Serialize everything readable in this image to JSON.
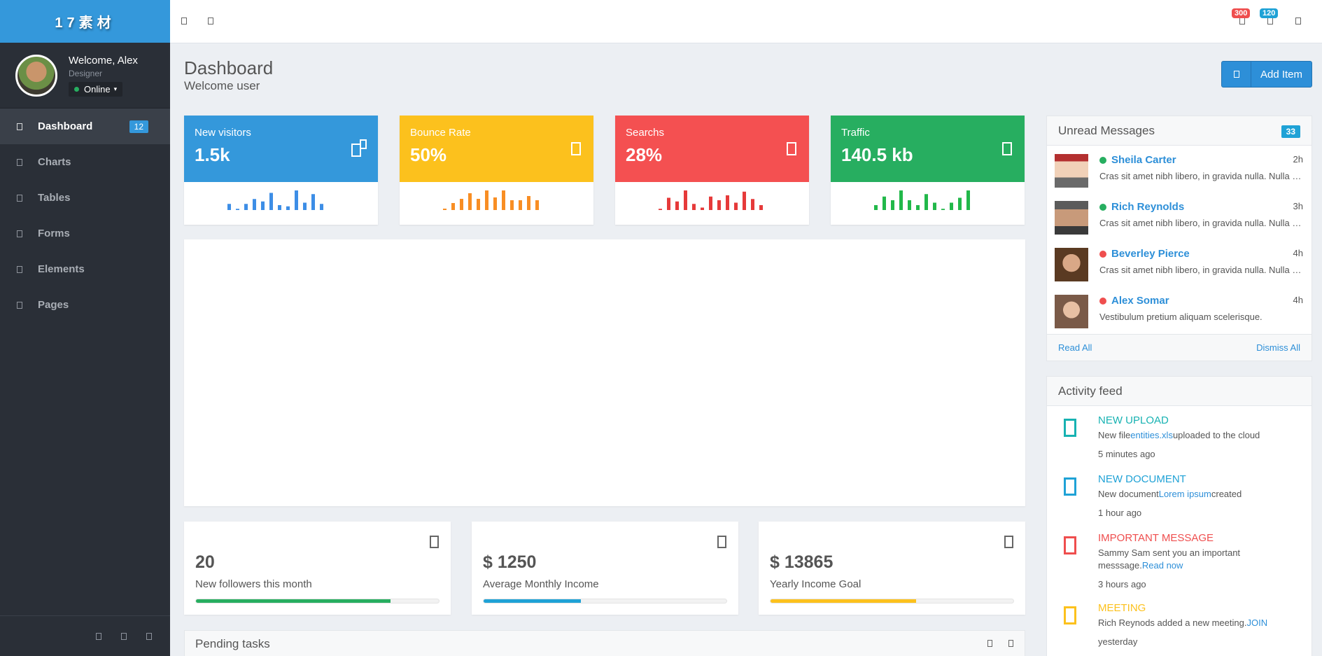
{
  "brand": "17素材",
  "profile": {
    "welcome": "Welcome, Alex",
    "role": "Designer",
    "status": "Online"
  },
  "nav": [
    {
      "label": "Dashboard",
      "badge": "12"
    },
    {
      "label": "Charts"
    },
    {
      "label": "Tables"
    },
    {
      "label": "Forms"
    },
    {
      "label": "Elements"
    },
    {
      "label": "Pages"
    }
  ],
  "topbar": {
    "badge_a": "300",
    "badge_b": "120"
  },
  "page": {
    "title": "Dashboard",
    "subtitle": "Welcome user",
    "add_button": "Add Item"
  },
  "stats": [
    {
      "label": "New visitors",
      "value": "1.5k",
      "color": "#3498db",
      "spark_color": "#3d8ee6",
      "spark": [
        5,
        1,
        5,
        9,
        7,
        14,
        4,
        3,
        16,
        6,
        13,
        5
      ]
    },
    {
      "label": "Bounce Rate",
      "value": "50%",
      "color": "#fcc11d",
      "spark_color": "#f88e24",
      "spark": [
        1,
        5,
        8,
        12,
        8,
        14,
        9,
        14,
        7,
        7,
        10,
        7
      ]
    },
    {
      "label": "Searchs",
      "value": "28%",
      "color": "#f45051",
      "spark_color": "#e63a3a",
      "spark": [
        1,
        10,
        7,
        16,
        5,
        2,
        11,
        8,
        12,
        6,
        15,
        9,
        4
      ]
    },
    {
      "label": "Traffic",
      "value": "140.5 kb",
      "color": "#27ae60",
      "spark_color": "#22b84a",
      "spark": [
        4,
        11,
        8,
        16,
        8,
        4,
        13,
        6,
        1,
        6,
        10,
        16
      ]
    }
  ],
  "minis": [
    {
      "value": "20",
      "label": "New followers this month",
      "color": "#27ae60",
      "progress": 0.8
    },
    {
      "value": "$ 1250",
      "label": "Average Monthly Income",
      "color": "#1fa2d6",
      "progress": 0.4
    },
    {
      "value": "$ 13865",
      "label": "Yearly Income Goal",
      "color": "#fcc11d",
      "progress": 0.6
    }
  ],
  "pending": {
    "title": "Pending tasks"
  },
  "messages": {
    "title": "Unread Messages",
    "count": "33",
    "items": [
      {
        "name": "Sheila Carter",
        "time": "2h",
        "status": "online",
        "text": "Cras sit amet nibh libero, in gravida nulla. Nulla vel metus scelerisque ante sollicitudin."
      },
      {
        "name": "Rich Reynolds",
        "time": "3h",
        "status": "online",
        "text": "Cras sit amet nibh libero, in gravida nulla. Nulla vel metus scelerisque ante sollicitudin."
      },
      {
        "name": "Beverley Pierce",
        "time": "4h",
        "status": "offline",
        "text": "Cras sit amet nibh libero, in gravida nulla. Nulla vel metus scelerisque ante sollicitudin."
      },
      {
        "name": "Alex Somar",
        "time": "4h",
        "status": "offline",
        "text": "Vestibulum pretium aliquam scelerisque."
      }
    ],
    "read_all": "Read All",
    "dismiss_all": "Dismiss All"
  },
  "activity": {
    "title": "Activity feed",
    "items": [
      {
        "title": "NEW UPLOAD",
        "color": "#17b2b2",
        "pre": "New file",
        "link": "entities.xls",
        "post": "uploaded to the cloud",
        "time": "5 minutes ago"
      },
      {
        "title": "NEW DOCUMENT",
        "color": "#1fa2d6",
        "pre": "New document",
        "link": "Lorem ipsum",
        "post": "created",
        "time": "1 hour ago"
      },
      {
        "title": "IMPORTANT MESSAGE",
        "color": "#ef4e4e",
        "pre": "Sammy Sam sent you an important messsage.",
        "link": "Read now",
        "post": "",
        "time": "3 hours ago"
      },
      {
        "title": "MEETING",
        "color": "#fcc11d",
        "pre": "Rich Reynods added a new meeting.",
        "link": "JOIN",
        "post": "",
        "time": "yesterday"
      }
    ]
  }
}
